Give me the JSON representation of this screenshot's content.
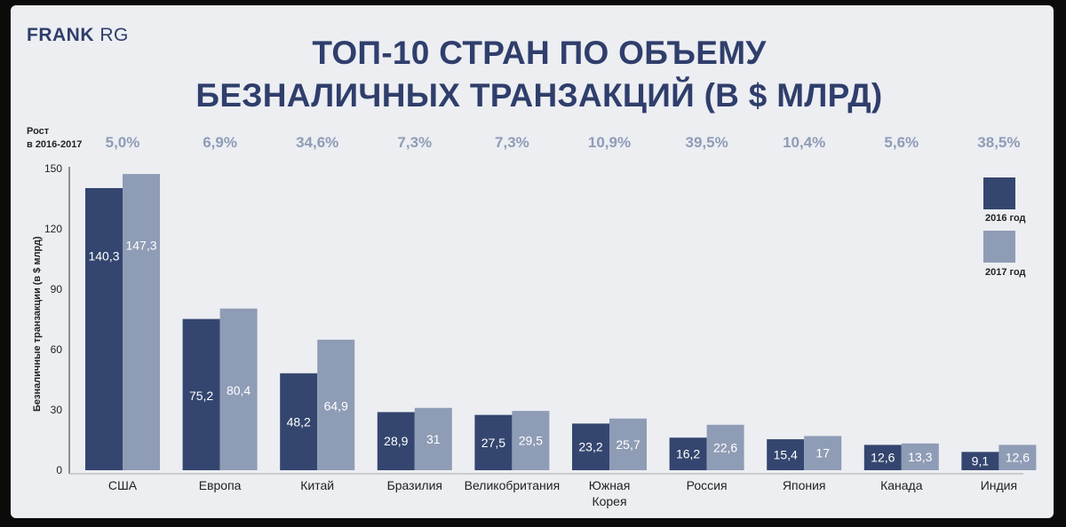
{
  "brand": {
    "bold": "FRANK",
    "light": "RG"
  },
  "title": {
    "line1": "ТОП-10 СТРАН ПО ОБЪЕМУ",
    "line2": "БЕЗНАЛИЧНЫХ ТРАНЗАКЦИЙ (В $ МЛРД)"
  },
  "growth_caption": {
    "line1": "Рост",
    "line2": "в 2016-2017"
  },
  "colors": {
    "series_2016": "#34466f",
    "series_2017": "#8f9cb6",
    "growth_text": "#8f9cb6",
    "title": "#2f3e6b"
  },
  "chart_data": {
    "type": "bar",
    "title": "ТОП-10 СТРАН ПО ОБЪЕМУ БЕЗНАЛИЧНЫХ ТРАНЗАКЦИЙ (В $ МЛРД)",
    "xlabel": "",
    "ylabel": "Безналичные транзакции (в $ млрд)",
    "ylim": [
      0,
      150
    ],
    "yticks": [
      0,
      30,
      60,
      90,
      120,
      150
    ],
    "legend_position": "right",
    "grid": false,
    "categories": [
      "США",
      "Европа",
      "Китай",
      "Бразилия",
      "Великобритания",
      "Южная Корея",
      "Россия",
      "Япония",
      "Канада",
      "Индия"
    ],
    "category_lines": [
      [
        "США"
      ],
      [
        "Европа"
      ],
      [
        "Китай"
      ],
      [
        "Бразилия"
      ],
      [
        "Великобритания"
      ],
      [
        "Южная",
        "Корея"
      ],
      [
        "Россия"
      ],
      [
        "Япония"
      ],
      [
        "Канада"
      ],
      [
        "Индия"
      ]
    ],
    "series": [
      {
        "name": "2016 год",
        "values": [
          140.3,
          75.2,
          48.2,
          28.9,
          27.5,
          23.2,
          16.2,
          15.4,
          12.6,
          9.1
        ],
        "labels": [
          "140,3",
          "75,2",
          "48,2",
          "28,9",
          "27,5",
          "23,2",
          "16,2",
          "15,4",
          "12,6",
          "9,1"
        ]
      },
      {
        "name": "2017 год",
        "values": [
          147.3,
          80.4,
          64.9,
          31,
          29.5,
          25.7,
          22.6,
          17,
          13.3,
          12.6
        ],
        "labels": [
          "147,3",
          "80,4",
          "64,9",
          "31",
          "29,5",
          "25,7",
          "22,6",
          "17",
          "13,3",
          "12,6"
        ]
      }
    ],
    "growth_percent": [
      "5,0%",
      "6,9%",
      "34,6%",
      "7,3%",
      "7,3%",
      "10,9%",
      "39,5%",
      "10,4%",
      "5,6%",
      "38,5%"
    ]
  }
}
